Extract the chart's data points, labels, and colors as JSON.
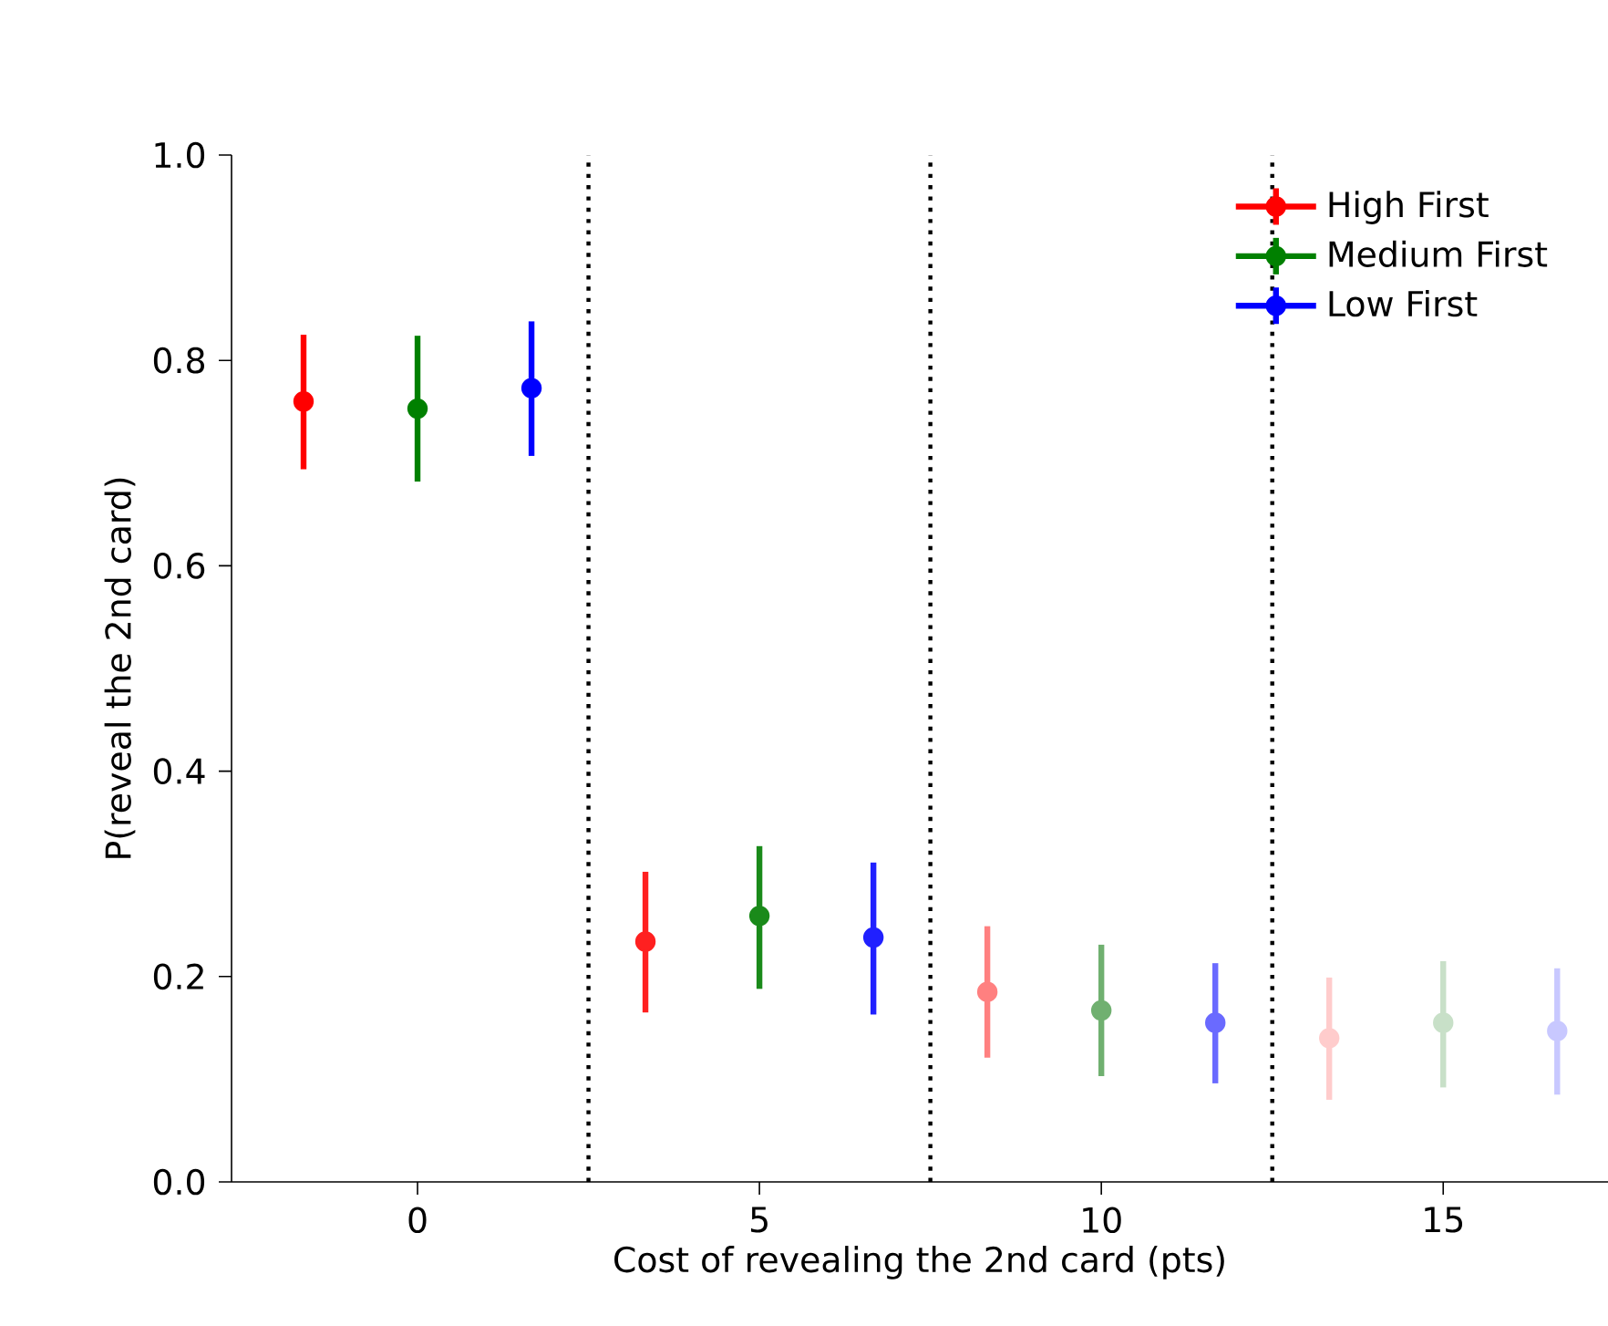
{
  "chart_data": {
    "type": "scatter",
    "xlabel": "Cost of revealing the 2nd card (pts)",
    "ylabel": "P(reveal the 2nd card)",
    "xlim": [
      -2.72,
      17.41
    ],
    "xticks": [
      0,
      5,
      10,
      15
    ],
    "ylim": [
      0,
      1
    ],
    "yticks": [
      {
        "value": 0,
        "label": "0.0"
      },
      {
        "value": 0.2,
        "label": "0.2"
      },
      {
        "value": 0.4,
        "label": "0.4"
      },
      {
        "value": 0.6,
        "label": "0.6"
      },
      {
        "value": 0.8,
        "label": "0.8"
      },
      {
        "value": 1,
        "label": "1.0"
      }
    ],
    "marker": "circle",
    "legend": "top right",
    "grid": false,
    "ref_lines": [
      {
        "axis": "x",
        "value": 2.5,
        "color": "#000000",
        "line_style": "dotted"
      },
      {
        "axis": "x",
        "value": 7.5,
        "color": "#000000",
        "line_style": "dotted"
      },
      {
        "axis": "x",
        "value": 12.5,
        "color": "#000000",
        "line_style": "dotted"
      }
    ],
    "series": [
      {
        "name": "High First",
        "color": "#ff0000",
        "colors": [
          "#ff0000",
          "#ff2020",
          "#ff8080",
          "#ffcccc"
        ],
        "x": [
          -1.667,
          3.333,
          8.333,
          13.333
        ],
        "values": [
          0.76,
          0.234,
          0.185,
          0.14
        ],
        "errors": [
          [
            0.694,
            0.825
          ],
          [
            0.165,
            0.302
          ],
          [
            0.121,
            0.249
          ],
          [
            0.08,
            0.199
          ]
        ]
      },
      {
        "name": "Medium First",
        "color": "#008000",
        "colors": [
          "#008000",
          "#1a8a1a",
          "#70b070",
          "#c8e0c8"
        ],
        "x": [
          0,
          5,
          10,
          15
        ],
        "values": [
          0.753,
          0.259,
          0.167,
          0.155
        ],
        "errors": [
          [
            0.682,
            0.824
          ],
          [
            0.188,
            0.327
          ],
          [
            0.103,
            0.231
          ],
          [
            0.092,
            0.215
          ]
        ]
      },
      {
        "name": "Low First",
        "color": "#0000ff",
        "colors": [
          "#0000ff",
          "#2020ff",
          "#6a6aff",
          "#c8c8ff"
        ],
        "x": [
          1.667,
          6.667,
          11.667,
          16.667
        ],
        "values": [
          0.773,
          0.238,
          0.155,
          0.147
        ],
        "errors": [
          [
            0.707,
            0.838
          ],
          [
            0.163,
            0.311
          ],
          [
            0.096,
            0.213
          ],
          [
            0.085,
            0.208
          ]
        ]
      }
    ]
  }
}
